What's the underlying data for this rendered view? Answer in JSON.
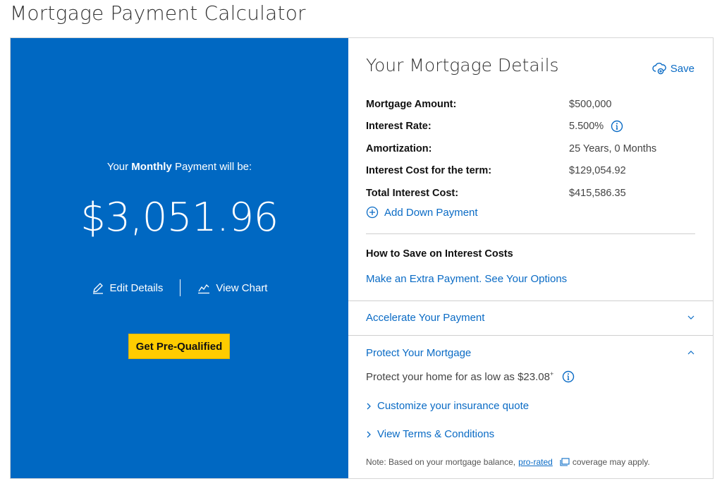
{
  "page": {
    "title": "Mortgage Payment Calculator"
  },
  "summary": {
    "label_prefix": "Your ",
    "label_bold": "Monthly",
    "label_suffix": " Payment will be:",
    "amount": "$3,051.96",
    "edit_label": "Edit Details",
    "chart_label": "View Chart",
    "cta_label": "Get Pre-Qualified"
  },
  "details": {
    "heading": "Your Mortgage Details",
    "save_label": "Save",
    "rows": [
      {
        "label": "Mortgage Amount:",
        "value": "$500,000"
      },
      {
        "label": "Interest Rate:",
        "value": "5.500%"
      },
      {
        "label": "Amortization:",
        "value": "25 Years, 0 Months"
      },
      {
        "label": "Interest Cost for the term:",
        "value": "$129,054.92"
      },
      {
        "label": "Total Interest Cost:",
        "value": "$415,586.35"
      }
    ],
    "add_down_payment": "Add Down Payment",
    "save_heading": "How to Save on Interest Costs",
    "extra_payment_link": "Make an Extra Payment. See Your Options"
  },
  "accordion": {
    "accelerate_label": "Accelerate Your Payment",
    "protect_label": "Protect Your Mortgage",
    "protect_text": "Protect your home for as low as $23.08",
    "protect_sup": "+",
    "customize_link": "Customize your insurance quote",
    "terms_link": "View Terms & Conditions",
    "note_prefix": "Note: Based on your mortgage balance, ",
    "note_link": "pro-rated",
    "note_suffix": " coverage may apply."
  },
  "colors": {
    "brand_blue": "#0068c2",
    "link_blue": "#0a6bc5",
    "cta_yellow": "#ffcc00"
  }
}
